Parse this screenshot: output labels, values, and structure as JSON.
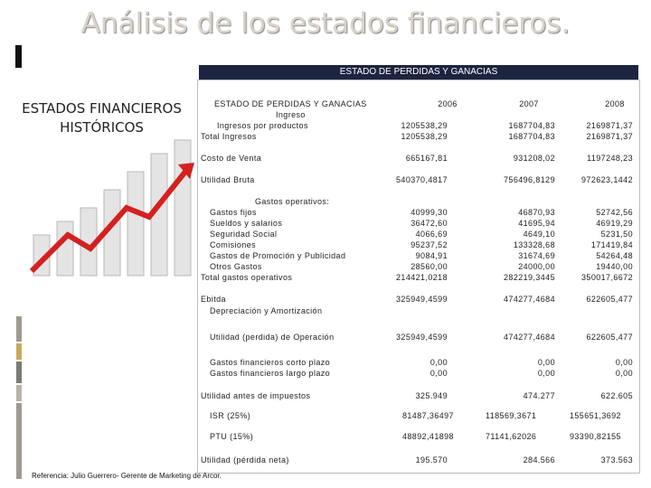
{
  "title": "Análisis de los estados financieros.",
  "side_label": "ESTADOS FINANCIEROS HISTÓRICOS",
  "reference": "Referencia: Julio Guerrero- Gerente de Marketing de Arcor.",
  "table": {
    "caption": "ESTADO DE PERDIDAS Y GANACIAS",
    "header": [
      "ESTADO DE PERDIDAS Y GANACIAS",
      "2006",
      "2007",
      "2008"
    ],
    "rows": [
      {
        "label": "Ingreso"
      },
      {
        "label": "Ingresos por productos",
        "values": [
          "1205538,29",
          "1687704,83",
          "2169871,37"
        ]
      },
      {
        "label": "Total Ingresos",
        "values": [
          "1205538,29",
          "1687704,83",
          "2169871,37"
        ]
      },
      {
        "label": "Costo de Venta",
        "values": [
          "665167,81",
          "931208,02",
          "1197248,23"
        ]
      },
      {
        "label": "Utilidad Bruta",
        "values": [
          "540370,4817",
          "756496,8129",
          "972623,1442"
        ]
      },
      {
        "label": "Gastos operativos:"
      },
      {
        "label": "Gastos fijos",
        "values": [
          "40999,30",
          "46870,93",
          "52742,56"
        ]
      },
      {
        "label": "Sueldos y salarios",
        "values": [
          "36472,60",
          "41695,94",
          "46919,29"
        ]
      },
      {
        "label": "Seguridad Social",
        "values": [
          "4066,69",
          "4649,10",
          "5231,50"
        ]
      },
      {
        "label": "Comisiones",
        "values": [
          "95237,52",
          "133328,68",
          "171419,84"
        ]
      },
      {
        "label": "Gastos de Promoción y Publicidad",
        "values": [
          "9084,91",
          "31674,69",
          "54264,48"
        ]
      },
      {
        "label": "Otros Gastos",
        "values": [
          "28560,00",
          "24000,00",
          "19440,00"
        ]
      },
      {
        "label": "Total gastos operativos",
        "values": [
          "214421,0218",
          "282219,3445",
          "350017,6672"
        ]
      },
      {
        "label": "Ebitda",
        "values": [
          "325949,4599",
          "474277,4684",
          "622605,477"
        ]
      },
      {
        "label": "Depreciación y Amortización"
      },
      {
        "label": "Utilidad (perdida) de Operación",
        "values": [
          "325949,4599",
          "474277,4684",
          "622605,477"
        ]
      },
      {
        "label": "Gastos financieros corto plazo",
        "values": [
          "0,00",
          "0,00",
          "0,00"
        ]
      },
      {
        "label": "Gastos financieros largo plazo",
        "values": [
          "0,00",
          "0,00",
          "0,00"
        ]
      },
      {
        "label": "Utilidad antes de impuestos",
        "values": [
          "325.949",
          "474.277",
          "622.605"
        ]
      },
      {
        "label": "ISR (25%)",
        "values": [
          "81487,36497",
          "118569,3671",
          "155651,3692"
        ]
      },
      {
        "label": "PTU (15%)",
        "values": [
          "48892,41898",
          "71141,62026",
          "93390,82155"
        ]
      },
      {
        "label": "Utilidad (pérdida neta)",
        "values": [
          "195.570",
          "284.566",
          "373.563"
        ]
      }
    ]
  }
}
